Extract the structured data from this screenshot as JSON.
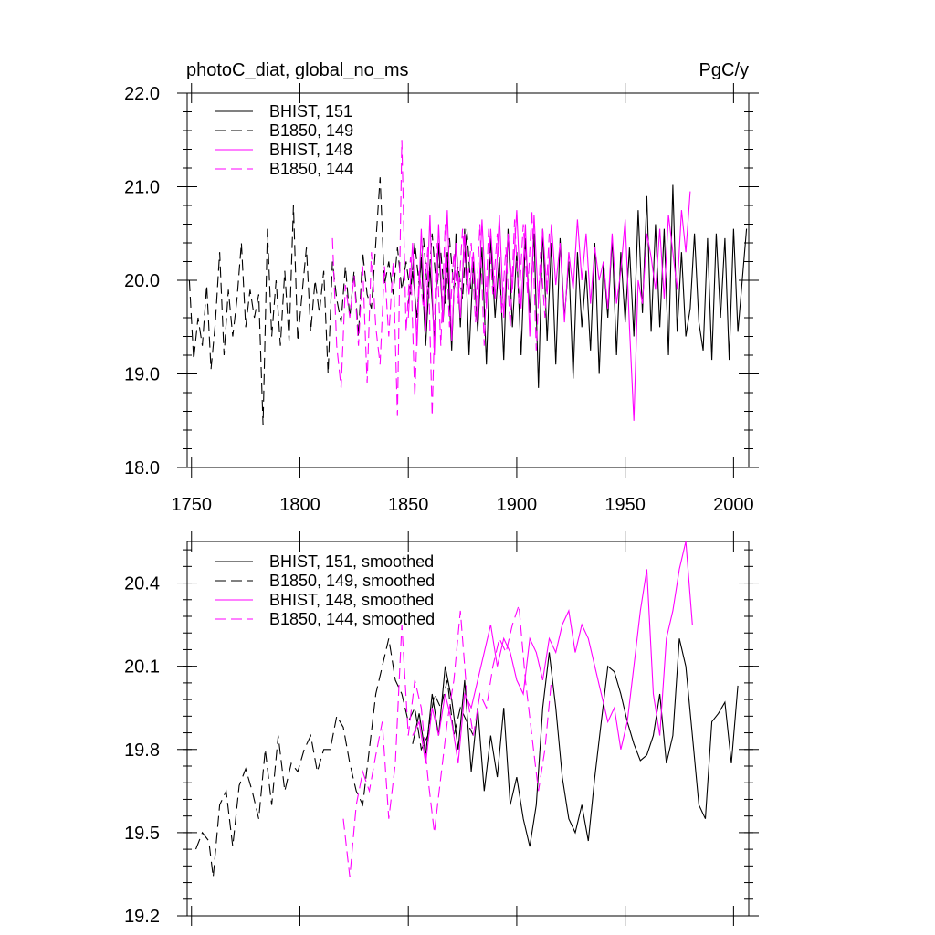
{
  "figure": {
    "left_title": "photoC_diat, global_no_ms",
    "right_title": "PgC/y"
  },
  "colors": {
    "black": "#000000",
    "magenta": "#ff00ff"
  },
  "chart_data": [
    {
      "type": "line",
      "panel": "top",
      "title": "photoC_diat, global_no_ms",
      "units": "PgC/y",
      "xlim": [
        1748,
        2007
      ],
      "ylim": [
        18.0,
        22.0
      ],
      "xticks": [
        1750,
        1800,
        1850,
        1900,
        1950,
        2000
      ],
      "xtick_labels": [
        "1750",
        "1800",
        "1850",
        "1900",
        "1950",
        "2000"
      ],
      "yticks": [
        18.0,
        19.0,
        20.0,
        21.0,
        22.0
      ],
      "ytick_labels": [
        "18.0",
        "19.0",
        "20.0",
        "21.0",
        "22.0"
      ],
      "legend_position": "top-left",
      "series": [
        {
          "name": "BHIST, 151",
          "color": "#000000",
          "dash": "solid",
          "x": [
            1850,
            1852,
            1854,
            1856,
            1858,
            1860,
            1862,
            1864,
            1866,
            1868,
            1870,
            1872,
            1874,
            1876,
            1878,
            1880,
            1882,
            1884,
            1886,
            1888,
            1890,
            1892,
            1894,
            1896,
            1898,
            1900,
            1902,
            1904,
            1906,
            1908,
            1910,
            1912,
            1914,
            1916,
            1918,
            1920,
            1922,
            1924,
            1926,
            1928,
            1930,
            1932,
            1934,
            1936,
            1938,
            1940,
            1942,
            1944,
            1946,
            1948,
            1950,
            1952,
            1954,
            1956,
            1958,
            1960,
            1962,
            1964,
            1966,
            1968,
            1970,
            1972,
            1974,
            1976,
            1978,
            1980,
            1982,
            1984,
            1986,
            1988,
            1990,
            1992,
            1994,
            1996,
            1998,
            2000,
            2002,
            2004,
            2006
          ],
          "y": [
            19.75,
            20.1,
            19.6,
            20.25,
            19.3,
            20.15,
            19.4,
            20.4,
            19.55,
            20.3,
            19.25,
            20.5,
            19.5,
            20.55,
            19.2,
            20.2,
            19.45,
            20.35,
            19.1,
            20.45,
            19.6,
            20.25,
            19.15,
            20.55,
            19.5,
            20.3,
            19.2,
            20.45,
            19.65,
            20.5,
            18.85,
            20.55,
            19.35,
            20.4,
            19.1,
            20.45,
            19.6,
            20.2,
            18.95,
            20.3,
            19.5,
            20.1,
            19.25,
            20.4,
            19.0,
            20.2,
            19.6,
            20.45,
            19.2,
            20.3,
            19.55,
            20.35,
            19.4,
            20.75,
            19.65,
            20.9,
            19.45,
            20.6,
            19.5,
            20.55,
            19.2,
            21.02,
            19.45,
            20.3,
            19.4,
            19.7,
            20.5,
            19.55,
            19.25,
            20.45,
            19.15,
            20.5,
            19.6,
            20.45,
            19.15,
            20.55,
            19.45,
            20.0,
            20.55
          ]
        },
        {
          "name": "B1850, 149",
          "color": "#000000",
          "dash": "dashed",
          "x": [
            1749,
            1751,
            1753,
            1755,
            1757,
            1759,
            1761,
            1763,
            1765,
            1767,
            1769,
            1771,
            1773,
            1775,
            1777,
            1779,
            1781,
            1783,
            1785,
            1787,
            1789,
            1791,
            1793,
            1795,
            1797,
            1799,
            1801,
            1803,
            1805,
            1807,
            1809,
            1811,
            1813,
            1815,
            1817,
            1819,
            1821,
            1823,
            1825,
            1827,
            1829,
            1831,
            1833,
            1835,
            1837,
            1839,
            1841,
            1843,
            1845,
            1847,
            1849,
            1851,
            1853,
            1855,
            1857,
            1859,
            1861,
            1863,
            1865,
            1867,
            1869,
            1871,
            1873,
            1875,
            1877,
            1879
          ],
          "y": [
            20.0,
            19.15,
            19.6,
            19.3,
            19.95,
            19.05,
            19.55,
            20.3,
            19.2,
            19.9,
            19.4,
            19.8,
            20.4,
            19.5,
            19.9,
            19.6,
            19.85,
            18.45,
            20.55,
            19.4,
            20.0,
            19.3,
            20.1,
            19.35,
            20.8,
            19.35,
            19.85,
            20.35,
            19.45,
            20.0,
            19.65,
            20.1,
            19.0,
            20.2,
            19.8,
            19.55,
            20.15,
            19.6,
            20.1,
            19.4,
            20.3,
            19.85,
            19.7,
            20.4,
            21.1,
            19.95,
            20.2,
            19.85,
            20.35,
            19.9,
            20.2,
            19.85,
            20.4,
            19.95,
            20.45,
            19.85,
            20.5,
            19.9,
            20.3,
            19.75,
            20.45,
            19.9,
            20.15,
            19.8,
            20.55,
            19.85
          ]
        },
        {
          "name": "BHIST, 148",
          "color": "#ff00ff",
          "dash": "solid",
          "x": [
            1850,
            1852,
            1854,
            1856,
            1858,
            1860,
            1862,
            1864,
            1866,
            1868,
            1870,
            1872,
            1874,
            1876,
            1878,
            1880,
            1882,
            1884,
            1886,
            1888,
            1890,
            1892,
            1894,
            1896,
            1898,
            1900,
            1902,
            1904,
            1906,
            1908,
            1910,
            1912,
            1914,
            1916,
            1918,
            1920,
            1922,
            1924,
            1926,
            1928,
            1930,
            1932,
            1934,
            1936,
            1938,
            1940,
            1942,
            1944,
            1946,
            1948,
            1950,
            1952,
            1954,
            1956,
            1958,
            1960,
            1962,
            1964,
            1966,
            1968,
            1970,
            1972,
            1974,
            1976,
            1978,
            1980
          ],
          "y": [
            19.6,
            20.4,
            19.3,
            20.55,
            19.45,
            20.7,
            19.2,
            20.6,
            19.55,
            20.75,
            19.35,
            20.4,
            19.6,
            20.5,
            19.85,
            20.3,
            19.55,
            20.65,
            19.7,
            20.55,
            19.8,
            20.7,
            19.6,
            20.5,
            19.9,
            20.75,
            19.7,
            20.6,
            19.4,
            20.7,
            19.75,
            20.55,
            19.85,
            20.6,
            19.95,
            20.4,
            19.55,
            20.3,
            19.9,
            20.65,
            20.0,
            20.5,
            19.75,
            20.35,
            20.0,
            20.2,
            19.7,
            20.5,
            19.75,
            20.1,
            20.65,
            19.5,
            18.5,
            20.0,
            19.75,
            20.5,
            20.25,
            19.9,
            20.55,
            19.8,
            20.7,
            20.3,
            19.9,
            20.75,
            20.3,
            20.95
          ]
        },
        {
          "name": "B1850, 144",
          "color": "#ff00ff",
          "dash": "dashed",
          "x": [
            1815,
            1817,
            1819,
            1821,
            1823,
            1825,
            1827,
            1829,
            1831,
            1833,
            1835,
            1837,
            1839,
            1841,
            1843,
            1845,
            1847,
            1849,
            1851,
            1853,
            1855,
            1857,
            1859,
            1861,
            1863,
            1865,
            1867,
            1869,
            1871,
            1873,
            1875,
            1877,
            1879,
            1881,
            1883,
            1885,
            1887,
            1889,
            1891,
            1893,
            1895,
            1897,
            1899,
            1901,
            1903,
            1905,
            1907,
            1909,
            1911,
            1913,
            1915
          ],
          "y": [
            20.45,
            19.3,
            18.85,
            19.95,
            19.6,
            20.05,
            19.3,
            20.15,
            18.9,
            20.3,
            19.5,
            19.1,
            20.15,
            19.4,
            20.2,
            18.55,
            21.5,
            19.45,
            20.25,
            18.75,
            20.1,
            19.7,
            20.35,
            18.55,
            20.4,
            19.3,
            20.6,
            19.5,
            20.3,
            19.75,
            20.55,
            19.9,
            20.4,
            19.55,
            20.6,
            19.3,
            20.55,
            19.85,
            20.5,
            19.65,
            20.35,
            19.5,
            20.65,
            19.75,
            20.6,
            19.85,
            20.75,
            19.25,
            20.3,
            19.6,
            20.5
          ]
        }
      ]
    },
    {
      "type": "line",
      "panel": "bottom",
      "xlim": [
        1748,
        2007
      ],
      "ylim": [
        19.2,
        20.55
      ],
      "xticks": [
        1750,
        1800,
        1850,
        1900,
        1950,
        2000
      ],
      "yticks": [
        19.2,
        19.5,
        19.8,
        20.1,
        20.4
      ],
      "ytick_labels": [
        "19.2",
        "19.5",
        "19.8",
        "20.1",
        "20.4"
      ],
      "legend_position": "top-left",
      "series": [
        {
          "name": "BHIST, 151, smoothed",
          "color": "#000000",
          "dash": "solid",
          "x": [
            1852,
            1855,
            1858,
            1861,
            1864,
            1867,
            1870,
            1873,
            1876,
            1879,
            1882,
            1885,
            1888,
            1891,
            1894,
            1897,
            1900,
            1903,
            1906,
            1909,
            1912,
            1915,
            1918,
            1921,
            1924,
            1927,
            1930,
            1933,
            1936,
            1939,
            1942,
            1945,
            1948,
            1951,
            1954,
            1957,
            1960,
            1963,
            1966,
            1969,
            1972,
            1975,
            1978,
            1981,
            1984,
            1987,
            1990,
            1993,
            1996,
            1999,
            2002
          ],
          "y": [
            19.82,
            19.93,
            19.78,
            20.0,
            19.85,
            20.1,
            19.98,
            19.8,
            20.05,
            19.72,
            19.95,
            19.65,
            19.85,
            19.7,
            19.95,
            19.6,
            19.7,
            19.55,
            19.45,
            19.6,
            19.95,
            20.15,
            19.95,
            19.7,
            19.55,
            19.5,
            19.6,
            19.47,
            19.7,
            19.9,
            20.1,
            20.08,
            20.0,
            19.9,
            19.82,
            19.76,
            19.78,
            19.85,
            20.0,
            19.75,
            19.85,
            20.2,
            20.1,
            19.85,
            19.6,
            19.55,
            19.9,
            19.93,
            19.97,
            19.75,
            20.03
          ]
        },
        {
          "name": "B1850, 149, smoothed",
          "color": "#000000",
          "dash": "dashed",
          "x": [
            1752,
            1755,
            1758,
            1760,
            1763,
            1766,
            1769,
            1772,
            1775,
            1778,
            1781,
            1784,
            1787,
            1790,
            1793,
            1796,
            1799,
            1802,
            1805,
            1808,
            1811,
            1814,
            1817,
            1820,
            1823,
            1826,
            1829,
            1832,
            1835,
            1838,
            1841,
            1844,
            1847,
            1850,
            1853,
            1856,
            1859,
            1862,
            1865,
            1868,
            1871,
            1874,
            1877,
            1880
          ],
          "y": [
            19.44,
            19.5,
            19.47,
            19.34,
            19.6,
            19.65,
            19.45,
            19.67,
            19.73,
            19.65,
            19.55,
            19.8,
            19.6,
            19.85,
            19.65,
            19.75,
            19.72,
            19.8,
            19.85,
            19.72,
            19.8,
            19.8,
            19.92,
            19.88,
            19.75,
            19.65,
            19.6,
            19.8,
            20.0,
            20.1,
            20.2,
            20.05,
            20.0,
            19.9,
            19.95,
            19.8,
            19.85,
            20.0,
            19.95,
            20.05,
            19.85,
            19.95,
            19.9,
            19.85
          ]
        },
        {
          "name": "BHIST, 148, smoothed",
          "color": "#ff00ff",
          "dash": "solid",
          "x": [
            1852,
            1855,
            1858,
            1861,
            1864,
            1867,
            1870,
            1873,
            1876,
            1879,
            1882,
            1885,
            1888,
            1891,
            1894,
            1897,
            1900,
            1903,
            1906,
            1909,
            1912,
            1915,
            1918,
            1921,
            1924,
            1927,
            1930,
            1933,
            1936,
            1939,
            1942,
            1945,
            1948,
            1951,
            1954,
            1957,
            1960,
            1963,
            1966,
            1969,
            1972,
            1975,
            1978,
            1981
          ],
          "y": [
            19.85,
            19.9,
            19.75,
            19.95,
            19.85,
            20.0,
            19.9,
            19.75,
            20.0,
            19.95,
            20.05,
            20.15,
            20.25,
            20.1,
            20.2,
            20.15,
            20.05,
            20.0,
            20.2,
            20.15,
            20.05,
            20.2,
            20.15,
            20.25,
            20.3,
            20.15,
            20.25,
            20.2,
            20.1,
            20.0,
            19.9,
            19.95,
            19.8,
            19.9,
            20.1,
            20.3,
            20.45,
            20.0,
            19.85,
            20.2,
            20.3,
            20.45,
            20.55,
            20.25
          ]
        },
        {
          "name": "B1850, 144, smoothed",
          "color": "#ff00ff",
          "dash": "dashed",
          "x": [
            1820,
            1823,
            1826,
            1829,
            1832,
            1835,
            1838,
            1841,
            1844,
            1847,
            1850,
            1853,
            1856,
            1859,
            1862,
            1865,
            1868,
            1871,
            1874,
            1877,
            1880,
            1883,
            1886,
            1889,
            1892,
            1895,
            1898,
            1901,
            1904,
            1907,
            1910,
            1913,
            1916
          ],
          "y": [
            19.55,
            19.34,
            19.6,
            19.72,
            19.65,
            19.78,
            19.9,
            19.55,
            19.75,
            20.25,
            19.85,
            20.05,
            19.95,
            19.7,
            19.5,
            19.7,
            19.9,
            20.05,
            20.3,
            20.0,
            19.85,
            20.0,
            19.95,
            20.1,
            20.2,
            20.15,
            20.25,
            20.32,
            20.05,
            19.85,
            19.65,
            19.8,
            20.05
          ]
        }
      ]
    }
  ]
}
